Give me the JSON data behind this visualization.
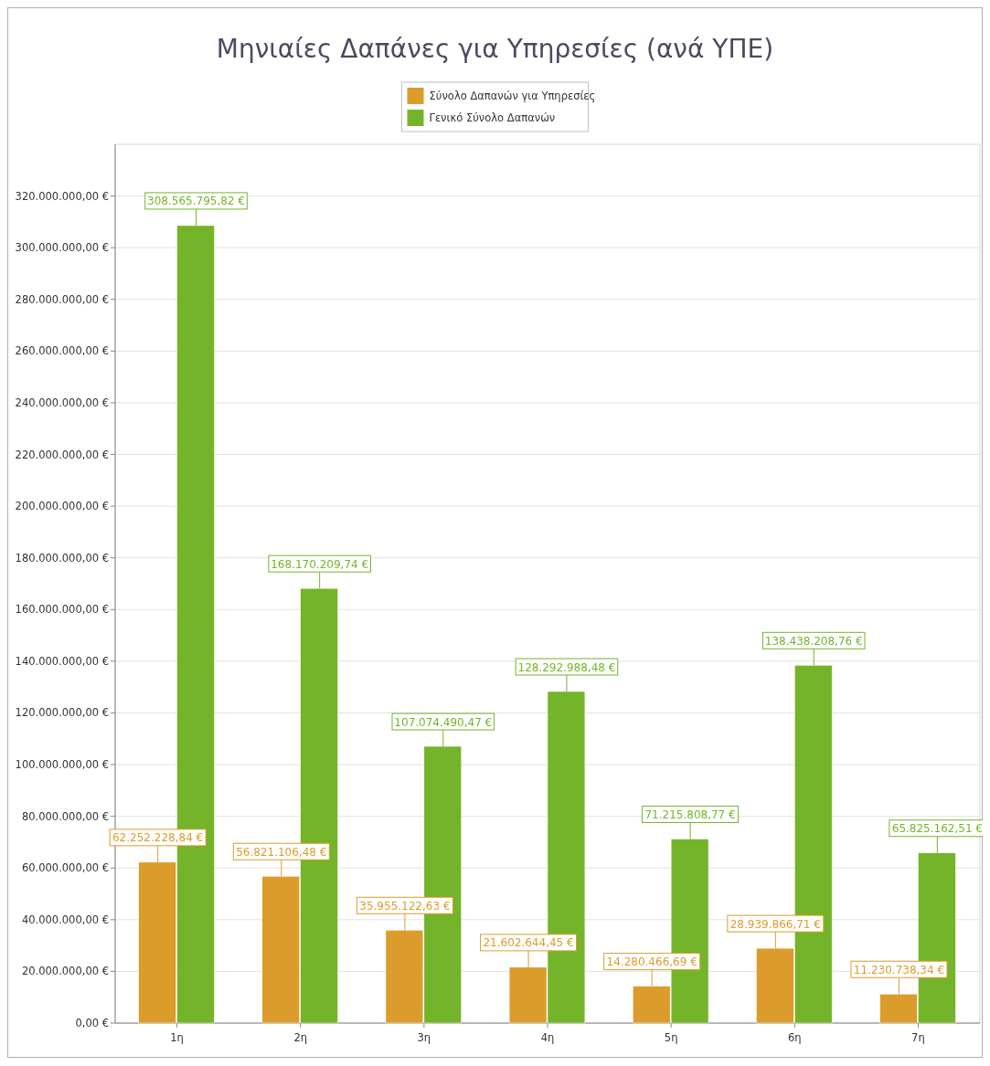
{
  "chart_data": {
    "type": "bar",
    "title": "Μηνιαίες Δαπάνες για Υπηρεσίες (ανά ΥΠΕ)",
    "categories": [
      "1η",
      "2η",
      "3η",
      "4η",
      "5η",
      "6η",
      "7η"
    ],
    "series": [
      {
        "name": "Σύνολο Δαπανών για Υπηρεσίες",
        "color": "#dc9c2c",
        "values": [
          62252228.84,
          56821106.48,
          35955122.63,
          21602644.45,
          14280466.69,
          28939866.71,
          11230738.34
        ],
        "value_labels": [
          "62.252.228,84 €",
          "56.821.106,48 €",
          "35.955.122,63 €",
          "21.602.644,45 €",
          "14.280.466,69 €",
          "28.939.866,71 €",
          "11.230.738,34 €"
        ]
      },
      {
        "name": "Γενικό Σύνολο Δαπανών",
        "color": "#74b42a",
        "values": [
          308565795.82,
          168170209.74,
          107074490.47,
          128292988.48,
          71215808.77,
          138438208.76,
          65825162.51
        ],
        "value_labels": [
          "308.565.795,82 €",
          "168.170.209,74 €",
          "107.074.490,47 €",
          "128.292.988,48 €",
          "71.215.808,77 €",
          "138.438.208,76 €",
          "65.825.162,51 €"
        ]
      }
    ],
    "ylim": [
      0,
      340000000
    ],
    "yticks": [
      {
        "value": 0,
        "label": "0,00 €"
      },
      {
        "value": 20000000,
        "label": "20.000.000,00 €"
      },
      {
        "value": 40000000,
        "label": "40.000.000,00 €"
      },
      {
        "value": 60000000,
        "label": "60.000.000,00 €"
      },
      {
        "value": 80000000,
        "label": "80.000.000,00 €"
      },
      {
        "value": 100000000,
        "label": "100.000.000,00 €"
      },
      {
        "value": 120000000,
        "label": "120.000.000,00 €"
      },
      {
        "value": 140000000,
        "label": "140.000.000,00 €"
      },
      {
        "value": 160000000,
        "label": "160.000.000,00 €"
      },
      {
        "value": 180000000,
        "label": "180.000.000,00 €"
      },
      {
        "value": 200000000,
        "label": "200.000.000,00 €"
      },
      {
        "value": 220000000,
        "label": "220.000.000,00 €"
      },
      {
        "value": 240000000,
        "label": "240.000.000,00 €"
      },
      {
        "value": 260000000,
        "label": "260.000.000,00 €"
      },
      {
        "value": 280000000,
        "label": "280.000.000,00 €"
      },
      {
        "value": 300000000,
        "label": "300.000.000,00 €"
      },
      {
        "value": 320000000,
        "label": "320.000.000,00 €"
      }
    ],
    "grid": "y",
    "legend": "top"
  }
}
